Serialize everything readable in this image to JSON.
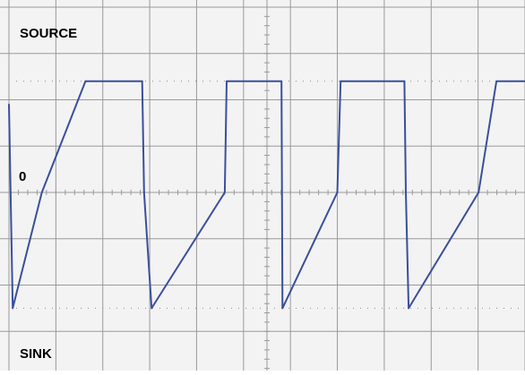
{
  "labels": {
    "source": "SOURCE",
    "zero": "0",
    "sink": "SINK"
  },
  "colors": {
    "background": "#f3f3f3",
    "grid": "#9a9a9a",
    "dotted_reference": "#8a8a8a",
    "trace": "#3a4f9c",
    "text": "#000000"
  },
  "chart_data": {
    "type": "line",
    "title": "",
    "xlabel": "",
    "ylabel": "",
    "grid": true,
    "x_divisions": 11,
    "y_divisions": 8,
    "xlim": [
      0,
      11
    ],
    "ylim": [
      -4,
      4
    ],
    "reference_levels": [
      2.4,
      -2.5
    ],
    "series": [
      {
        "x": [
          0.0,
          0.08,
          0.7,
          1.63,
          1.66,
          2.84,
          2.88,
          3.04,
          4.6,
          4.64,
          5.4,
          5.81,
          5.83,
          7.0,
          7.07,
          7.45,
          8.43,
          8.46,
          8.52,
          10.01,
          10.39,
          10.7,
          11.0
        ],
        "y": [
          1.9,
          -2.5,
          0.0,
          2.4,
          2.4,
          2.4,
          0.0,
          -2.5,
          0.0,
          2.4,
          2.4,
          2.4,
          -2.5,
          0.0,
          2.4,
          2.4,
          2.4,
          0.0,
          -2.5,
          0.0,
          2.4,
          2.4,
          2.4
        ]
      }
    ]
  }
}
